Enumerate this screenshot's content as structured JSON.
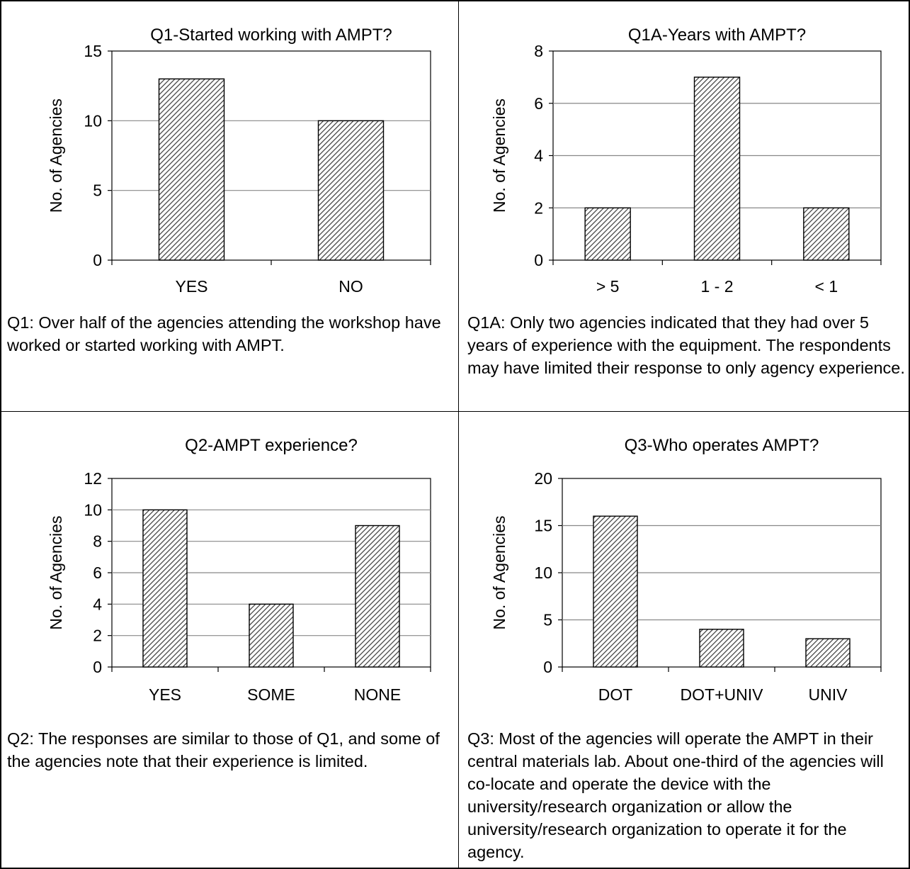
{
  "chart_data": [
    {
      "type": "bar",
      "title": "Q1-Started working with AMPT?",
      "ylabel": "No. of Agencies",
      "categories": [
        "YES",
        "NO"
      ],
      "values": [
        13,
        10
      ],
      "ylim": [
        0,
        15
      ],
      "yticks": [
        0,
        5,
        10,
        15
      ],
      "grid": true,
      "caption": "Q1: Over half of the agencies attending the workshop have worked or started working with AMPT."
    },
    {
      "type": "bar",
      "title": "Q1A-Years with AMPT?",
      "ylabel": "No. of Agencies",
      "categories": [
        "> 5",
        "1 - 2",
        "< 1"
      ],
      "values": [
        2,
        7,
        2
      ],
      "ylim": [
        0,
        8
      ],
      "yticks": [
        0,
        2,
        4,
        6,
        8
      ],
      "grid": true,
      "caption": "Q1A: Only two agencies indicated that they had over 5 years of experience with the equipment. The respondents may have limited their response to only agency experience."
    },
    {
      "type": "bar",
      "title": "Q2-AMPT experience?",
      "ylabel": "No. of Agencies",
      "categories": [
        "YES",
        "SOME",
        "NONE"
      ],
      "values": [
        10,
        4,
        9
      ],
      "ylim": [
        0,
        12
      ],
      "yticks": [
        0,
        2,
        4,
        6,
        8,
        10,
        12
      ],
      "grid": true,
      "caption": "Q2: The responses are similar to those of Q1, and some of the agencies note that their experience is limited."
    },
    {
      "type": "bar",
      "title": "Q3-Who operates AMPT?",
      "ylabel": "No. of Agencies",
      "categories": [
        "DOT",
        "DOT+UNIV",
        "UNIV"
      ],
      "values": [
        16,
        4,
        3
      ],
      "ylim": [
        0,
        20
      ],
      "yticks": [
        0,
        5,
        10,
        15,
        20
      ],
      "grid": true,
      "caption": "Q3: Most of the agencies will operate the AMPT in their central materials lab.  About one-third of the agencies will co-locate and operate the device with the university/research organization or allow the university/research organization to operate it for the agency."
    }
  ]
}
